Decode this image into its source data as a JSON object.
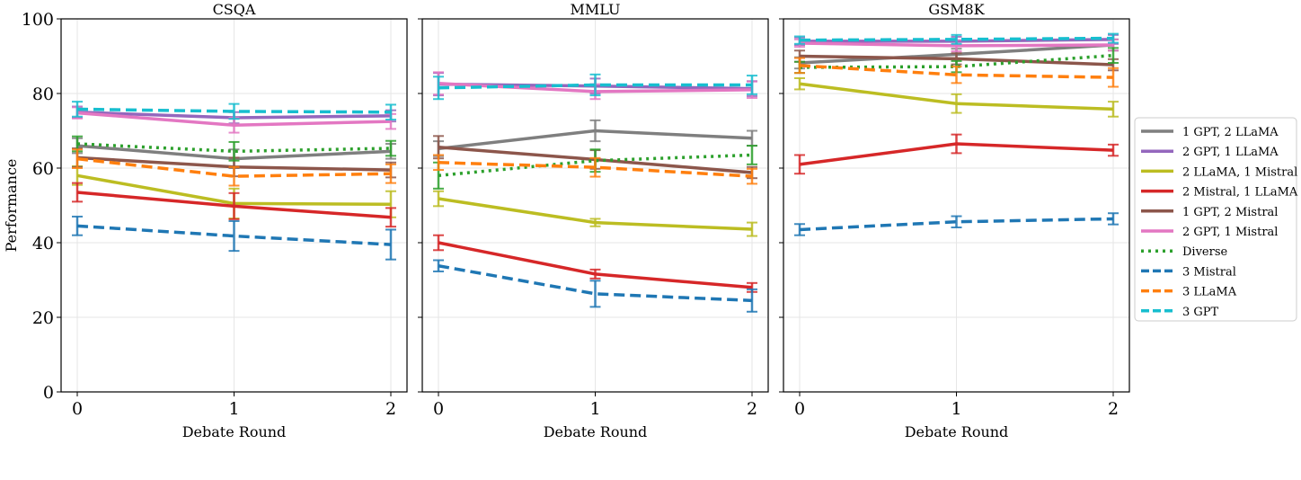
{
  "chart_data": {
    "type": "line",
    "ylabel": "Performance",
    "ylim": [
      0,
      100
    ],
    "yticks": [
      0,
      20,
      40,
      60,
      80,
      100
    ],
    "xticks": [
      0,
      1,
      2
    ],
    "grid": true,
    "legend_placement": "right",
    "x": [
      0,
      1,
      2
    ],
    "series_styles": [
      {
        "name": "1 GPT, 2 LLaMA",
        "color": "#7f7f7f",
        "dash": "solid"
      },
      {
        "name": "2 GPT, 1 LLaMA",
        "color": "#9467bd",
        "dash": "solid"
      },
      {
        "name": "2 LLaMA, 1 Mistral",
        "color": "#bcbd22",
        "dash": "solid"
      },
      {
        "name": "2 Mistral, 1 LLaMA",
        "color": "#d62728",
        "dash": "solid"
      },
      {
        "name": "1 GPT, 2 Mistral",
        "color": "#8c564b",
        "dash": "solid"
      },
      {
        "name": "2 GPT, 1 Mistral",
        "color": "#e377c2",
        "dash": "solid"
      },
      {
        "name": "Diverse",
        "color": "#2ca02c",
        "dash": "dotted"
      },
      {
        "name": "3 Mistral",
        "color": "#1f77b4",
        "dash": "dashed"
      },
      {
        "name": "3 LLaMA",
        "color": "#ff7f0e",
        "dash": "dashed"
      },
      {
        "name": "3 GPT",
        "color": "#17becf",
        "dash": "dashed"
      }
    ],
    "panels": [
      {
        "title": "CSQA",
        "xlabel": "Debate Round",
        "values": [
          [
            66,
            62.5,
            64.5
          ],
          [
            75,
            73.5,
            74
          ],
          [
            58,
            50.5,
            50.3
          ],
          [
            53.5,
            49.8,
            46.8
          ],
          [
            62.8,
            60.3,
            59.5
          ],
          [
            74.8,
            71.5,
            72.5
          ],
          [
            66.5,
            64.5,
            65.3
          ],
          [
            44.5,
            41.8,
            39.5
          ],
          [
            62.5,
            57.8,
            58.5
          ],
          [
            75.8,
            75.2,
            75
          ]
        ],
        "errors": [
          [
            2,
            2.5,
            2
          ],
          [
            1.5,
            1.5,
            1.5
          ],
          [
            2.5,
            4,
            3.5
          ],
          [
            2.5,
            3.5,
            2.5
          ],
          [
            2.5,
            2.5,
            2
          ],
          [
            1.5,
            2,
            2
          ],
          [
            2,
            2.5,
            2
          ],
          [
            2.5,
            4,
            4
          ],
          [
            2.5,
            2.5,
            2.5
          ],
          [
            2,
            2,
            2
          ]
        ]
      },
      {
        "title": "MMLU",
        "xlabel": "Debate Round",
        "values": [
          [
            65.2,
            70,
            68
          ],
          [
            82.5,
            82,
            81.3
          ],
          [
            51.8,
            45.4,
            43.6
          ],
          [
            40,
            31.6,
            28
          ],
          [
            65.6,
            62.3,
            58.8
          ],
          [
            82.7,
            80.5,
            81
          ],
          [
            58,
            62,
            63.5
          ],
          [
            33.8,
            26.3,
            24.5
          ],
          [
            61.5,
            60.2,
            57.8
          ],
          [
            81.5,
            82.3,
            82.3
          ]
        ],
        "errors": [
          [
            2,
            2.8,
            2
          ],
          [
            3,
            2,
            2
          ],
          [
            2,
            1,
            1.8
          ],
          [
            2,
            1.2,
            1.2
          ],
          [
            3,
            2.5,
            1.5
          ],
          [
            3,
            2,
            2.2
          ],
          [
            3.5,
            3,
            2.5
          ],
          [
            1.5,
            3.5,
            3
          ],
          [
            2,
            2.5,
            2
          ],
          [
            3,
            2.8,
            2.5
          ]
        ]
      },
      {
        "title": "GSM8K",
        "xlabel": "Debate Round",
        "values": [
          [
            88.2,
            90.5,
            93
          ],
          [
            94,
            94,
            94.5
          ],
          [
            82.6,
            77.3,
            75.8
          ],
          [
            61,
            66.5,
            64.8
          ],
          [
            90,
            89.3,
            87.7
          ],
          [
            93.5,
            92.8,
            93
          ],
          [
            87,
            87.2,
            90.2
          ],
          [
            43.5,
            45.6,
            46.4
          ],
          [
            87.5,
            85,
            84.3
          ],
          [
            94.3,
            94.5,
            94.8
          ]
        ],
        "errors": [
          [
            1.5,
            1.5,
            1.5
          ],
          [
            1,
            1.2,
            1.2
          ],
          [
            1.5,
            2.5,
            2
          ],
          [
            2.5,
            2.5,
            1.5
          ],
          [
            1.5,
            1.5,
            1.5
          ],
          [
            1,
            1.5,
            1.5
          ],
          [
            1.5,
            1.5,
            2
          ],
          [
            1.5,
            1.5,
            1.5
          ],
          [
            2,
            2.2,
            2.5
          ],
          [
            1,
            1.2,
            1.2
          ]
        ]
      }
    ]
  }
}
